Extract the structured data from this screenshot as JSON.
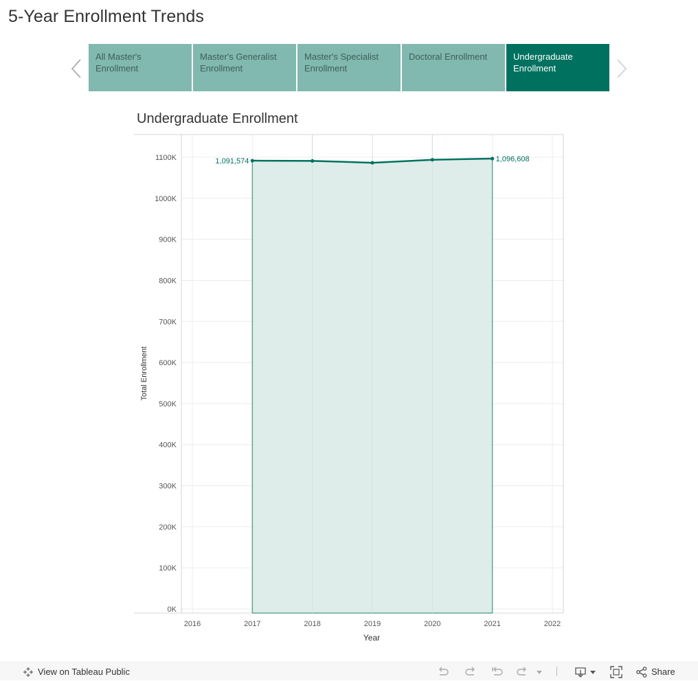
{
  "page": {
    "title": "5-Year Enrollment Trends"
  },
  "tabs": [
    {
      "label": "All Master's Enrollment",
      "active": false
    },
    {
      "label": "Master's Generalist Enrollment",
      "active": false
    },
    {
      "label": "Master's Specialist Enrollment",
      "active": false
    },
    {
      "label": "Doctoral Enrollment",
      "active": false
    },
    {
      "label": "Undergraduate Enrollment",
      "active": true
    }
  ],
  "chart_data": {
    "type": "area",
    "title": "Undergraduate Enrollment",
    "xlabel": "Year",
    "ylabel": "Total Enrollment",
    "x": [
      2017,
      2018,
      2019,
      2020,
      2021
    ],
    "values": [
      1091574,
      1091000,
      1086500,
      1093800,
      1096608
    ],
    "xlim": [
      2016,
      2022
    ],
    "ylim": [
      0,
      1100000
    ],
    "x_ticks": [
      "2016",
      "2017",
      "2018",
      "2019",
      "2020",
      "2021",
      "2022"
    ],
    "y_ticks": [
      "0K",
      "100K",
      "200K",
      "300K",
      "400K",
      "500K",
      "600K",
      "700K",
      "800K",
      "900K",
      "1000K",
      "1100K"
    ],
    "point_labels": [
      {
        "index": 0,
        "text": "1,091,574"
      },
      {
        "index": 4,
        "text": "1,096,608"
      }
    ],
    "grid": true,
    "colors": {
      "line": "#00715f",
      "fill": "#deede9",
      "area_edge": "#5fa897"
    }
  },
  "toolbar": {
    "view_on_public": "View on Tableau Public",
    "share": "Share"
  },
  "colors": {
    "tab_bg": "#81b8af",
    "tab_active_bg": "#00715f",
    "tab_text": "#3d5f59",
    "tab_active_text": "#ffffff"
  }
}
